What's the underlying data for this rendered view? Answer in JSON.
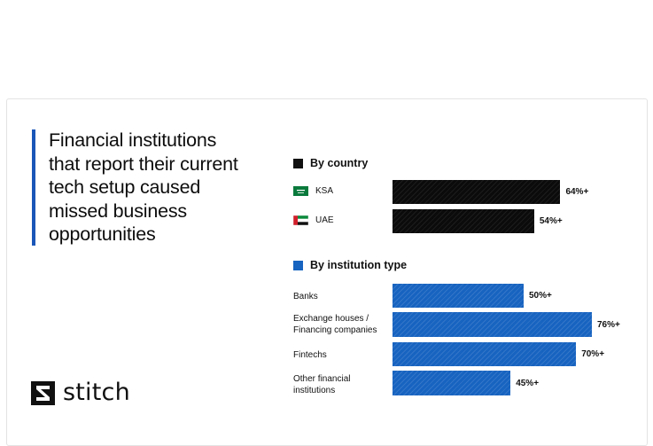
{
  "title_lines": [
    "Financial institutions",
    "that report their current",
    "tech setup caused",
    "missed business",
    "opportunities"
  ],
  "brand": "stitch",
  "colors": {
    "accent": "#1a56b8",
    "country": "#0b0b0b",
    "institution": "#1763c0"
  },
  "chart_data": {
    "type": "bar",
    "orientation": "horizontal",
    "groups": [
      {
        "name": "By country",
        "color": "#0b0b0b",
        "categories": [
          "KSA",
          "UAE"
        ],
        "values": [
          64,
          54
        ],
        "value_labels": [
          "64%+",
          "54%+"
        ]
      },
      {
        "name": "By institution type",
        "color": "#1763c0",
        "categories": [
          [
            "Banks"
          ],
          [
            "Exchange houses /",
            "Financing companies"
          ],
          [
            "Fintechs"
          ],
          [
            "Other financial",
            "institutions"
          ]
        ],
        "values": [
          50,
          76,
          70,
          45
        ],
        "value_labels": [
          "50%+",
          "76%+",
          "70%+",
          "45%+"
        ]
      }
    ]
  }
}
